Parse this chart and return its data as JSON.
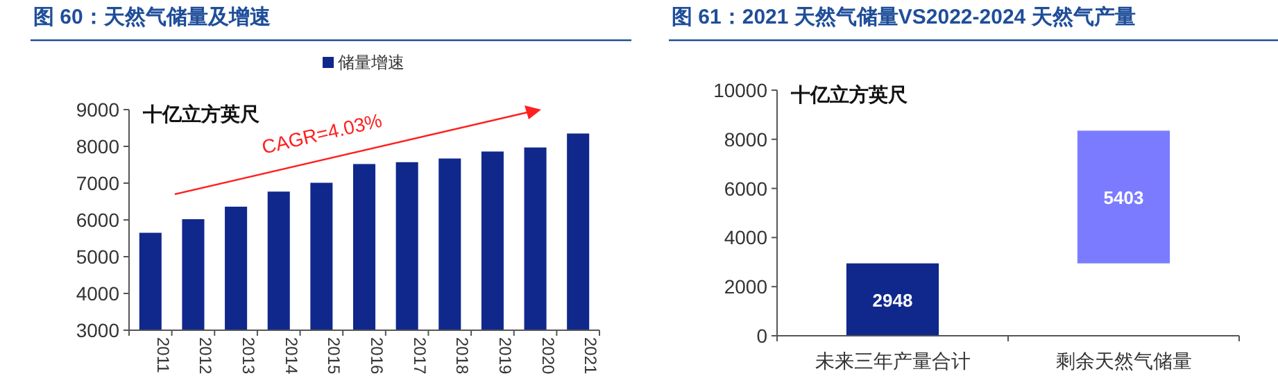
{
  "chart_data": [
    {
      "type": "bar",
      "title": "图 60：天然气储量及增速",
      "ylabel": "十亿立方英尺",
      "categories": [
        "2011",
        "2012",
        "2013",
        "2014",
        "2015",
        "2016",
        "2017",
        "2018",
        "2019",
        "2020",
        "2021"
      ],
      "series": [
        {
          "name": "储量增速",
          "color": "#10288c",
          "values": [
            5650,
            6020,
            6360,
            6770,
            7010,
            7520,
            7570,
            7670,
            7860,
            7970,
            8350
          ]
        }
      ],
      "ylim": [
        3000,
        9000
      ],
      "yticks": [
        3000,
        4000,
        5000,
        6000,
        7000,
        8000,
        9000
      ],
      "legend": "top",
      "grid": false,
      "annotations": [
        "CAGR=4.03%"
      ]
    },
    {
      "type": "bar",
      "title": "图 61：2021 天然气储量VS2022-2024 天然气产量",
      "ylabel": "十亿立方英尺",
      "categories": [
        "未来三年产量合计",
        "剩余天然气储量"
      ],
      "values": [
        2948,
        5403
      ],
      "base": [
        0,
        2948
      ],
      "colors": [
        "#10288c",
        "#7b7bff"
      ],
      "data_labels": true,
      "ylim": [
        0,
        10000
      ],
      "yticks": [
        0,
        2000,
        4000,
        6000,
        8000,
        10000
      ],
      "grid": false
    }
  ]
}
